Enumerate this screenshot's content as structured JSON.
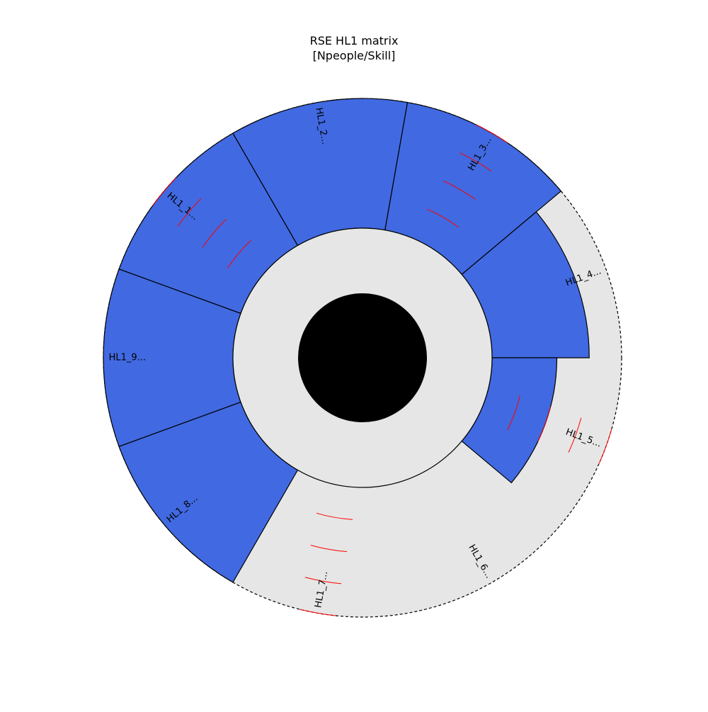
{
  "chart_data": {
    "type": "radial-bar",
    "title": "RSE HL1 matrix",
    "subtitle": "[Npeople/Skill]",
    "rmax": 4,
    "categories": [
      "HL1_1...",
      "HL1_2...",
      "HL1_3...",
      "HL1_4...",
      "HL1_5...",
      "HL1_6...",
      "HL1_7...",
      "HL1_8...",
      "HL1_9..."
    ],
    "values": [
      4,
      4,
      4,
      3,
      2,
      0,
      0,
      4,
      4
    ],
    "rings_shown_at": [
      "HL1_1...",
      "HL1_3...",
      "HL1_5...",
      "HL1_7..."
    ],
    "colors": {
      "bar": "#4169e1",
      "background": "#e6e6e6",
      "core": "#000000",
      "ring_marks": "#ff0000",
      "outline": "#000000"
    },
    "grid": true
  }
}
